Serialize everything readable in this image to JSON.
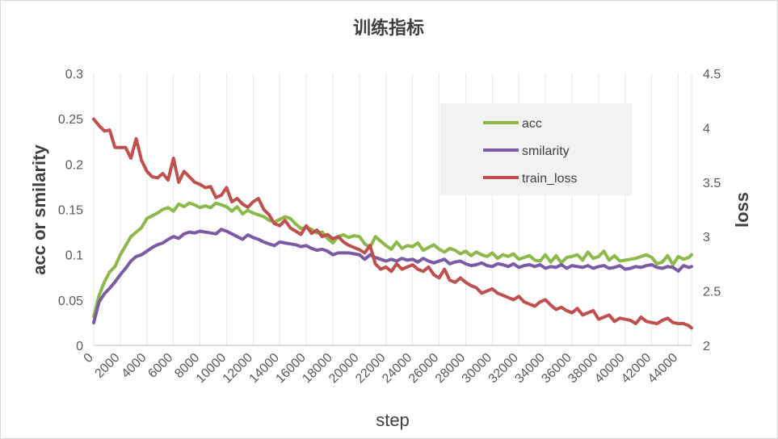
{
  "chart_data": {
    "type": "line",
    "title": "训练指标",
    "xlabel": "step",
    "ylabel_left": "acc or smilarity",
    "ylabel_right": "loss",
    "xlim": [
      0,
      45000
    ],
    "ylim_left": [
      0,
      0.3
    ],
    "ylim_right": [
      2,
      4.5
    ],
    "x_ticks": [
      "0",
      "2000",
      "4000",
      "6000",
      "8000",
      "10000",
      "12000",
      "14000",
      "16000",
      "18000",
      "20000",
      "22000",
      "24000",
      "26000",
      "28000",
      "30000",
      "32000",
      "34000",
      "36000",
      "38000",
      "40000",
      "42000",
      "44000"
    ],
    "yl_ticks": [
      "0",
      "0.05",
      "0.1",
      "0.15",
      "0.2",
      "0.25",
      "0.3"
    ],
    "yr_ticks": [
      "2",
      "2.5",
      "3",
      "3.5",
      "4",
      "4.5"
    ],
    "legend_position": "top-right",
    "x": [
      0,
      400,
      800,
      1200,
      1600,
      2000,
      2400,
      2800,
      3200,
      3600,
      4000,
      4400,
      4800,
      5200,
      5600,
      6000,
      6400,
      6800,
      7200,
      7600,
      8000,
      8400,
      8800,
      9200,
      9600,
      10000,
      10400,
      10800,
      11200,
      11600,
      12000,
      12400,
      12800,
      13200,
      13600,
      14000,
      14400,
      14800,
      15200,
      15600,
      16000,
      16400,
      16800,
      17200,
      17600,
      18000,
      18400,
      18800,
      19200,
      19600,
      20000,
      20400,
      20800,
      21200,
      21600,
      22000,
      22400,
      22800,
      23200,
      23600,
      24000,
      24400,
      24800,
      25200,
      25600,
      26000,
      26400,
      26800,
      27200,
      27600,
      28000,
      28400,
      28800,
      29200,
      29600,
      30000,
      30400,
      30800,
      31200,
      31600,
      32000,
      32400,
      32800,
      33200,
      33600,
      34000,
      34400,
      34800,
      35200,
      35600,
      36000,
      36400,
      36800,
      37200,
      37600,
      38000,
      38400,
      38800,
      39200,
      39600,
      40000,
      40400,
      40800,
      41200,
      41600,
      42000,
      42400,
      42800,
      43200,
      43600,
      44000,
      44400,
      44800,
      45000
    ],
    "series": [
      {
        "name": "acc",
        "axis": "left",
        "color": "#8db84a",
        "values": [
          0.032,
          0.055,
          0.07,
          0.081,
          0.087,
          0.1,
          0.11,
          0.12,
          0.125,
          0.13,
          0.14,
          0.143,
          0.146,
          0.15,
          0.152,
          0.148,
          0.156,
          0.153,
          0.157,
          0.155,
          0.152,
          0.154,
          0.152,
          0.157,
          0.155,
          0.153,
          0.148,
          0.153,
          0.145,
          0.149,
          0.146,
          0.144,
          0.142,
          0.138,
          0.136,
          0.139,
          0.142,
          0.14,
          0.134,
          0.129,
          0.13,
          0.128,
          0.124,
          0.125,
          0.118,
          0.113,
          0.12,
          0.122,
          0.119,
          0.121,
          0.12,
          0.112,
          0.108,
          0.12,
          0.115,
          0.11,
          0.106,
          0.114,
          0.107,
          0.11,
          0.109,
          0.113,
          0.105,
          0.108,
          0.111,
          0.106,
          0.103,
          0.107,
          0.105,
          0.101,
          0.104,
          0.099,
          0.103,
          0.1,
          0.098,
          0.102,
          0.096,
          0.1,
          0.098,
          0.101,
          0.095,
          0.097,
          0.099,
          0.094,
          0.093,
          0.1,
          0.092,
          0.099,
          0.091,
          0.097,
          0.098,
          0.1,
          0.094,
          0.103,
          0.096,
          0.098,
          0.104,
          0.094,
          0.099,
          0.093,
          0.094,
          0.095,
          0.096,
          0.098,
          0.1,
          0.097,
          0.09,
          0.092,
          0.099,
          0.089,
          0.098,
          0.095,
          0.097,
          0.1
        ]
      },
      {
        "name": "smilarity",
        "axis": "left",
        "color": "#7c5aa6",
        "values": [
          0.025,
          0.048,
          0.057,
          0.063,
          0.07,
          0.078,
          0.085,
          0.093,
          0.098,
          0.1,
          0.104,
          0.108,
          0.111,
          0.113,
          0.117,
          0.12,
          0.118,
          0.123,
          0.125,
          0.124,
          0.126,
          0.125,
          0.124,
          0.123,
          0.128,
          0.126,
          0.123,
          0.12,
          0.117,
          0.122,
          0.119,
          0.117,
          0.114,
          0.112,
          0.11,
          0.114,
          0.113,
          0.112,
          0.111,
          0.109,
          0.11,
          0.107,
          0.105,
          0.106,
          0.104,
          0.1,
          0.102,
          0.102,
          0.102,
          0.101,
          0.1,
          0.095,
          0.1,
          0.097,
          0.095,
          0.093,
          0.095,
          0.093,
          0.096,
          0.094,
          0.095,
          0.092,
          0.096,
          0.093,
          0.091,
          0.093,
          0.095,
          0.09,
          0.092,
          0.093,
          0.09,
          0.088,
          0.089,
          0.091,
          0.088,
          0.087,
          0.09,
          0.089,
          0.087,
          0.09,
          0.086,
          0.088,
          0.089,
          0.087,
          0.089,
          0.085,
          0.087,
          0.086,
          0.089,
          0.085,
          0.088,
          0.087,
          0.086,
          0.088,
          0.085,
          0.087,
          0.088,
          0.085,
          0.086,
          0.088,
          0.084,
          0.085,
          0.087,
          0.086,
          0.088,
          0.089,
          0.086,
          0.085,
          0.087,
          0.086,
          0.082,
          0.088,
          0.086,
          0.087
        ]
      },
      {
        "name": "train_loss",
        "axis": "right",
        "color": "#c0504d",
        "values": [
          4.08,
          4.02,
          3.97,
          3.98,
          3.82,
          3.82,
          3.82,
          3.72,
          3.9,
          3.7,
          3.6,
          3.55,
          3.54,
          3.58,
          3.52,
          3.72,
          3.5,
          3.6,
          3.55,
          3.5,
          3.48,
          3.45,
          3.46,
          3.36,
          3.38,
          3.45,
          3.32,
          3.35,
          3.3,
          3.27,
          3.32,
          3.35,
          3.25,
          3.2,
          3.12,
          3.1,
          3.15,
          3.08,
          3.05,
          3.02,
          3.1,
          3.03,
          3.06,
          3.0,
          3.02,
          2.98,
          3.0,
          2.95,
          2.92,
          2.9,
          2.88,
          2.85,
          2.92,
          2.75,
          2.7,
          2.72,
          2.68,
          2.75,
          2.7,
          2.72,
          2.74,
          2.7,
          2.68,
          2.72,
          2.65,
          2.62,
          2.7,
          2.6,
          2.58,
          2.62,
          2.58,
          2.55,
          2.53,
          2.48,
          2.5,
          2.52,
          2.48,
          2.46,
          2.44,
          2.42,
          2.45,
          2.4,
          2.38,
          2.36,
          2.4,
          2.42,
          2.37,
          2.33,
          2.35,
          2.32,
          2.3,
          2.34,
          2.28,
          2.3,
          2.32,
          2.24,
          2.26,
          2.28,
          2.22,
          2.25,
          2.24,
          2.23,
          2.2,
          2.26,
          2.22,
          2.21,
          2.2,
          2.23,
          2.25,
          2.21,
          2.2,
          2.2,
          2.18,
          2.16
        ]
      }
    ]
  }
}
